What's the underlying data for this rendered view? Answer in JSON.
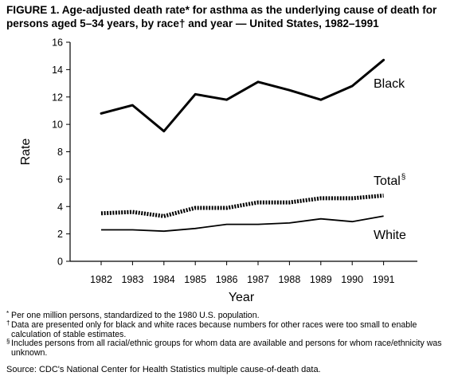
{
  "figure": {
    "title": "FIGURE 1. Age-adjusted death rate* for asthma as the underlying cause of death for persons aged 5–34 years, by race† and year — United States, 1982–1991"
  },
  "chart_data": {
    "type": "line",
    "x": [
      1982,
      1983,
      1984,
      1985,
      1986,
      1987,
      1988,
      1989,
      1990,
      1991
    ],
    "series": [
      {
        "name": "Black",
        "values": [
          10.8,
          11.4,
          9.5,
          12.2,
          11.8,
          13.1,
          12.5,
          11.8,
          12.8,
          14.7
        ],
        "style": "thick"
      },
      {
        "name": "Total",
        "name_sup": "§",
        "values": [
          3.5,
          3.6,
          3.3,
          3.9,
          3.9,
          4.3,
          4.3,
          4.6,
          4.6,
          4.8
        ],
        "style": "dotted"
      },
      {
        "name": "White",
        "values": [
          2.3,
          2.3,
          2.2,
          2.4,
          2.7,
          2.7,
          2.8,
          3.1,
          2.9,
          3.3
        ],
        "style": "thin"
      }
    ],
    "xlabel": "Year",
    "ylabel": "Rate",
    "ylim": [
      0,
      16
    ],
    "yticks": [
      0,
      2,
      4,
      6,
      8,
      10,
      12,
      14,
      16
    ],
    "grid": false,
    "legend": "inline labels at right of lines"
  },
  "footnotes": [
    {
      "mark": "*",
      "text": "Per one million persons, standardized to the 1980 U.S. population."
    },
    {
      "mark": "†",
      "text": "Data are presented only for black and white races because numbers for other races were too small to enable calculation of stable estimates."
    },
    {
      "mark": "§",
      "text": "Includes persons from all racial/ethnic groups for whom data are available and persons for whom race/ethnicity was unknown."
    }
  ],
  "source": "Source: CDC's National Center for Health Statistics multiple cause-of-death data."
}
